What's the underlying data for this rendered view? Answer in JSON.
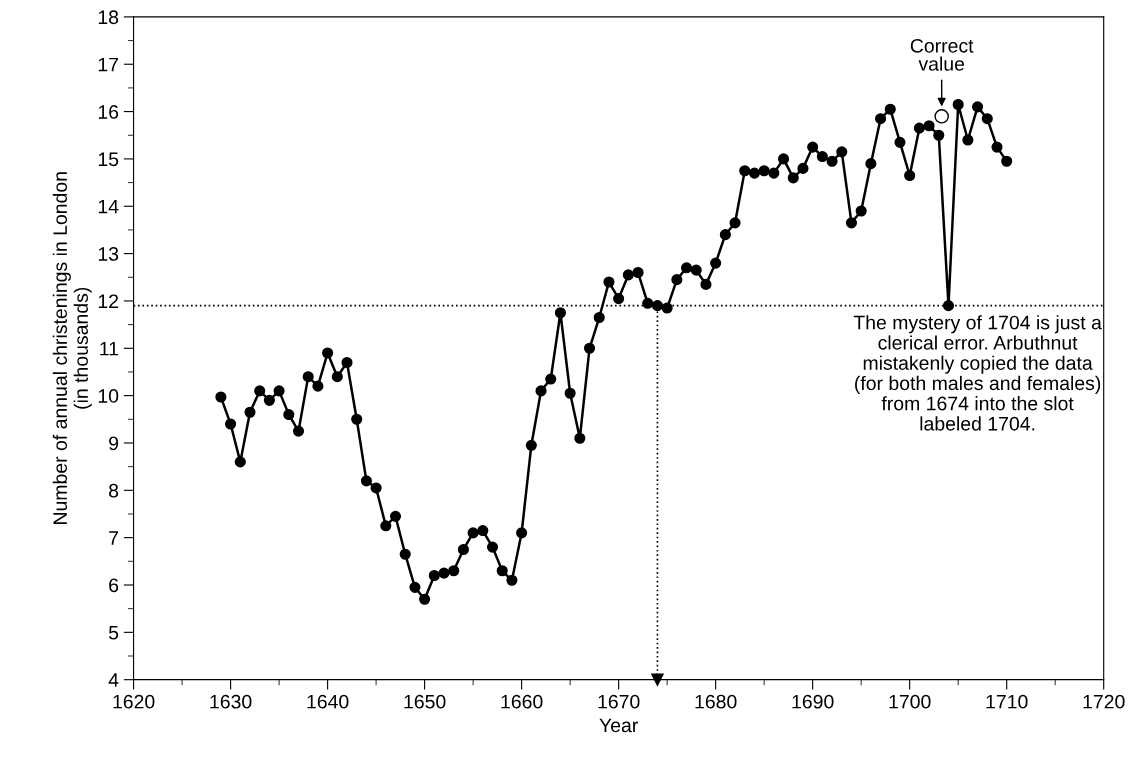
{
  "chart_data": {
    "type": "line",
    "xlabel": "Year",
    "ylabel": "Number of annual christenings in London\n(in thousands)",
    "x": [
      1629,
      1630,
      1631,
      1632,
      1633,
      1634,
      1635,
      1636,
      1637,
      1638,
      1639,
      1640,
      1641,
      1642,
      1643,
      1644,
      1645,
      1646,
      1647,
      1648,
      1649,
      1650,
      1651,
      1652,
      1653,
      1654,
      1655,
      1656,
      1657,
      1658,
      1659,
      1660,
      1661,
      1662,
      1663,
      1664,
      1665,
      1666,
      1667,
      1668,
      1669,
      1670,
      1671,
      1672,
      1673,
      1674,
      1675,
      1676,
      1677,
      1678,
      1679,
      1680,
      1681,
      1682,
      1683,
      1684,
      1685,
      1686,
      1687,
      1688,
      1689,
      1690,
      1691,
      1692,
      1693,
      1694,
      1695,
      1696,
      1697,
      1698,
      1699,
      1700,
      1701,
      1702,
      1703,
      1704,
      1705,
      1706,
      1707,
      1708,
      1709,
      1710
    ],
    "series": [
      {
        "color": "#000000",
        "marker": "circle",
        "values": [
          9.97,
          9.4,
          8.6,
          9.65,
          10.1,
          9.9,
          10.1,
          9.6,
          9.25,
          10.4,
          10.2,
          10.9,
          10.4,
          10.7,
          9.5,
          8.2,
          8.05,
          7.25,
          7.45,
          6.65,
          5.95,
          5.7,
          6.2,
          6.25,
          6.3,
          6.75,
          7.1,
          7.15,
          6.8,
          6.3,
          6.1,
          7.1,
          8.95,
          10.1,
          10.35,
          11.75,
          10.05,
          9.1,
          11.0,
          11.65,
          12.4,
          12.05,
          12.55,
          12.6,
          11.95,
          11.9,
          11.85,
          12.45,
          12.7,
          12.65,
          12.35,
          12.8,
          13.4,
          13.65,
          14.75,
          14.7,
          14.75,
          14.7,
          15.0,
          14.6,
          14.8,
          15.25,
          15.05,
          14.95,
          15.15,
          13.65,
          13.9,
          14.9,
          15.85,
          16.05,
          15.35,
          14.65,
          15.65,
          15.7,
          15.5,
          11.9,
          16.15,
          15.4,
          16.1,
          15.85,
          15.25,
          14.95
        ]
      },
      {
        "type": "scatter",
        "color": "#000000",
        "marker": "circle",
        "x": [
          1703.3
        ],
        "values": [
          15.9
        ]
      }
    ],
    "xlim": [
      1620,
      1720
    ],
    "xticks": [
      1620,
      1630,
      1640,
      1650,
      1660,
      1670,
      1680,
      1690,
      1700,
      1710,
      1720
    ],
    "ylim": [
      4,
      18
    ],
    "yticks": [
      4,
      5,
      6,
      7,
      8,
      9,
      10,
      11,
      12,
      13,
      14,
      15,
      16,
      17,
      18
    ],
    "grid": false,
    "legend": false,
    "ref_lines": [
      {
        "axis": "y",
        "value": 11.9,
        "line_style": "dotted",
        "color": "#000000"
      },
      {
        "axis": "x",
        "value": 1674,
        "line_style": "dotted",
        "color": "#000000"
      }
    ],
    "annotations": [
      {
        "text": "Correct\nvalue",
        "x": 1703.3,
        "y": 15.9
      },
      "The mystery of 1704 is just a\nclerical error. Arbuthnut\nmistakenly copied the data\n(for both males and females)\nfrom 1674 into the slot\nlabeled 1704."
    ]
  }
}
